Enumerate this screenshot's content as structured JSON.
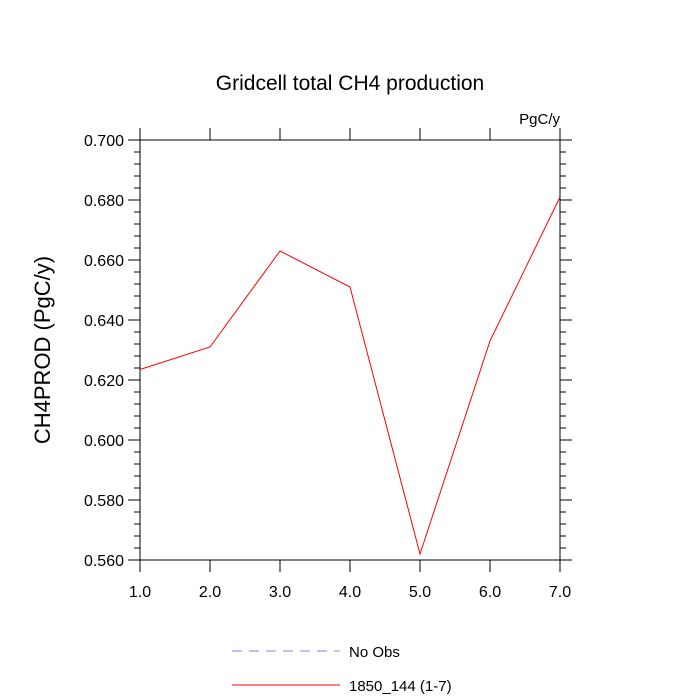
{
  "chart_data": {
    "type": "line",
    "title": "Gridcell total CH4 production",
    "units_label": "PgC/y",
    "xlabel": "",
    "ylabel": "CH4PROD  (PgC/y)",
    "xlim": [
      1.0,
      7.0
    ],
    "ylim": [
      0.56,
      0.7
    ],
    "x_ticks": [
      1.0,
      2.0,
      3.0,
      4.0,
      5.0,
      6.0,
      7.0
    ],
    "x_tick_labels": [
      "1.0",
      "2.0",
      "3.0",
      "4.0",
      "5.0",
      "6.0",
      "7.0"
    ],
    "y_ticks": [
      0.56,
      0.58,
      0.6,
      0.62,
      0.64,
      0.66,
      0.68,
      0.7
    ],
    "y_tick_labels": [
      "0.560",
      "0.580",
      "0.600",
      "0.620",
      "0.640",
      "0.660",
      "0.680",
      "0.700"
    ],
    "grid": false,
    "legend_position": "bottom",
    "series": [
      {
        "name": "No Obs",
        "color": "#8080ff",
        "style": "dashed",
        "x": [],
        "y": []
      },
      {
        "name": "1850_144 (1-7)",
        "color": "#ff0000",
        "style": "solid",
        "x": [
          1,
          2,
          3,
          4,
          5,
          6,
          7
        ],
        "y": [
          0.6235,
          0.631,
          0.663,
          0.651,
          0.562,
          0.633,
          0.681
        ]
      }
    ]
  }
}
